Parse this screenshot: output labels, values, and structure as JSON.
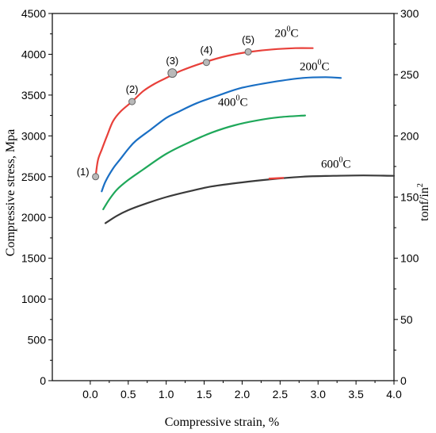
{
  "chart_data": {
    "type": "line",
    "xlabel": "Compressive strain, %",
    "ylabel": "Compressive stress, Mpa",
    "y2label": "tonf/in",
    "y2label_sup": "2",
    "xlim": [
      -0.5,
      4.0
    ],
    "ylim": [
      0,
      4500
    ],
    "y2lim": [
      0,
      300
    ],
    "x_ticks": [
      "0.0",
      "0.5",
      "1.0",
      "1.5",
      "2.0",
      "2.5",
      "3.0",
      "3.5",
      "4.0"
    ],
    "y_ticks": [
      "0",
      "500",
      "1000",
      "1500",
      "2000",
      "2500",
      "3000",
      "3500",
      "4000",
      "4500"
    ],
    "y2_ticks": [
      "0",
      "50",
      "100",
      "150",
      "200",
      "250",
      "300"
    ],
    "grid": false,
    "series": [
      {
        "name": "20",
        "name_sup": "0",
        "name_unit": "C",
        "color": "#e8403a",
        "x": [
          0.07,
          0.1,
          0.15,
          0.22,
          0.3,
          0.4,
          0.55,
          0.7,
          0.85,
          1.0,
          1.2,
          1.5,
          1.8,
          2.1,
          2.4,
          2.7,
          2.93
        ],
        "y": [
          2500,
          2700,
          2830,
          3000,
          3180,
          3300,
          3420,
          3550,
          3640,
          3710,
          3800,
          3900,
          3980,
          4030,
          4060,
          4075,
          4075
        ]
      },
      {
        "name": "200",
        "name_sup": "0",
        "name_unit": "C",
        "color": "#1a6fc4",
        "x": [
          0.15,
          0.2,
          0.3,
          0.4,
          0.5,
          0.6,
          0.8,
          1.0,
          1.15,
          1.4,
          1.7,
          2.0,
          2.4,
          2.8,
          3.1,
          3.3
        ],
        "y": [
          2320,
          2440,
          2600,
          2720,
          2840,
          2940,
          3080,
          3220,
          3290,
          3400,
          3500,
          3590,
          3660,
          3710,
          3720,
          3710
        ]
      },
      {
        "name": "400",
        "name_sup": "0",
        "name_unit": "C",
        "color": "#1fa85a",
        "x": [
          0.17,
          0.25,
          0.35,
          0.5,
          0.7,
          1.0,
          1.3,
          1.6,
          1.9,
          2.2,
          2.5,
          2.83
        ],
        "y": [
          2100,
          2220,
          2340,
          2460,
          2590,
          2780,
          2920,
          3040,
          3130,
          3190,
          3230,
          3250
        ]
      },
      {
        "name": "600",
        "name_sup": "0",
        "name_unit": "C",
        "color": "#3a3a3a",
        "x": [
          0.2,
          0.35,
          0.5,
          0.7,
          1.0,
          1.3,
          1.6,
          2.0,
          2.4,
          2.8,
          3.2,
          3.6,
          4.0
        ],
        "y": [
          1930,
          2020,
          2090,
          2160,
          2250,
          2320,
          2380,
          2430,
          2470,
          2500,
          2510,
          2515,
          2510
        ]
      }
    ],
    "red_segment": {
      "color": "#e8403a",
      "x": [
        2.35,
        2.55
      ],
      "y": [
        2475,
        2485
      ]
    },
    "markers": [
      {
        "label": "(1)",
        "x": 0.07,
        "y": 2500,
        "label_side": "left"
      },
      {
        "label": "(2)",
        "x": 0.55,
        "y": 3420,
        "label_side": "above"
      },
      {
        "label": "(3)",
        "x": 1.08,
        "y": 3770,
        "label_side": "above"
      },
      {
        "label": "(4)",
        "x": 1.53,
        "y": 3900,
        "label_side": "above"
      },
      {
        "label": "(5)",
        "x": 2.08,
        "y": 4030,
        "label_side": "above"
      }
    ]
  }
}
